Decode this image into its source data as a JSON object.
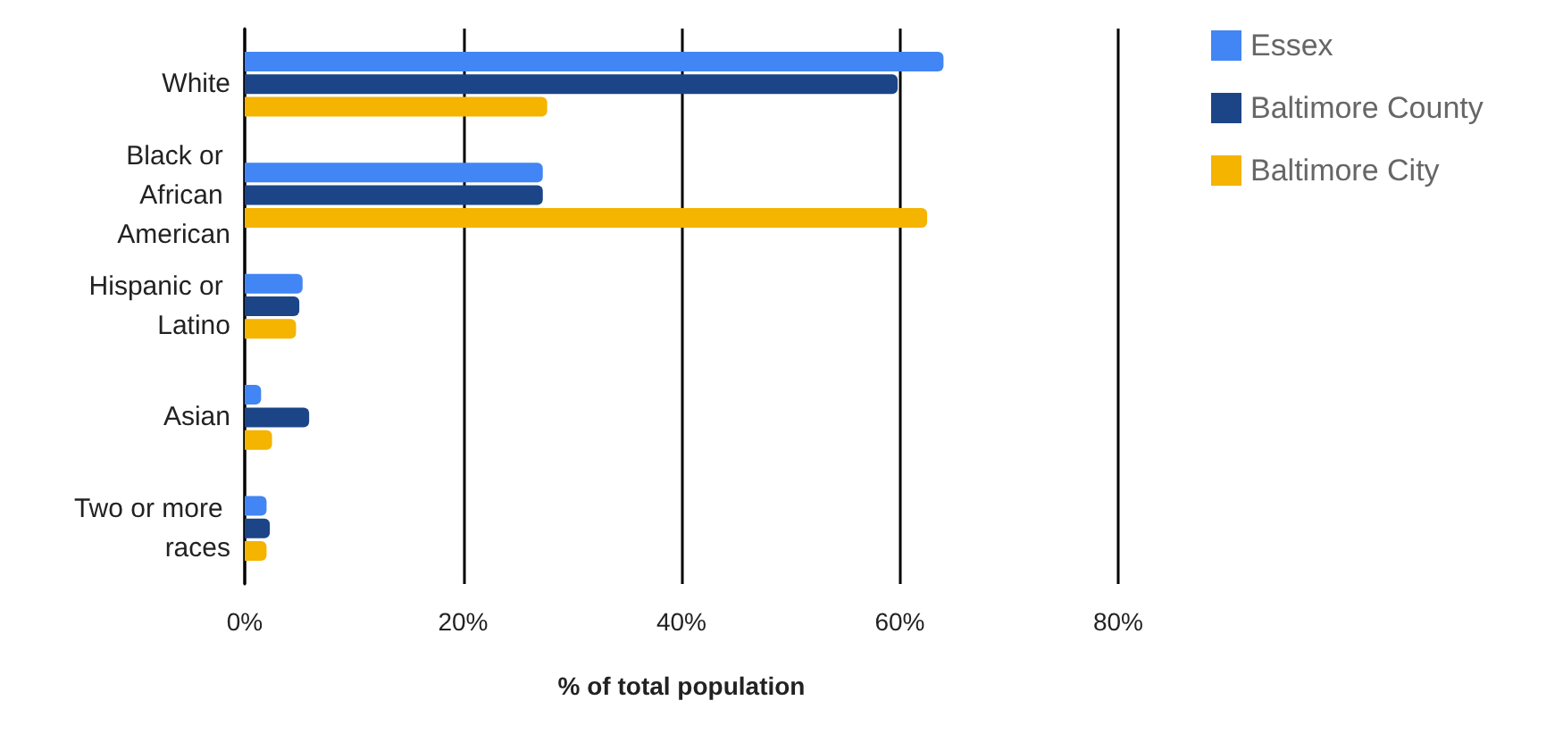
{
  "chart_data": {
    "type": "bar",
    "orientation": "horizontal",
    "xlabel": "% of total population",
    "categories": [
      "White",
      "Black or African American",
      "Hispanic or Latino",
      "Asian",
      "Two or more races"
    ],
    "series": [
      {
        "name": "Essex",
        "color": "#4285f4",
        "values": [
          64.0,
          27.3,
          5.3,
          1.5,
          2.0
        ]
      },
      {
        "name": "Baltimore County",
        "color": "#1c4587",
        "values": [
          59.8,
          27.3,
          5.0,
          5.9,
          2.3
        ]
      },
      {
        "name": "Baltimore City",
        "color": "#f4b400",
        "values": [
          27.7,
          62.5,
          4.7,
          2.5,
          2.0
        ]
      }
    ],
    "xlim": [
      0,
      80
    ],
    "xticks": [
      {
        "value": 0,
        "label": "0%"
      },
      {
        "value": 20,
        "label": "20%"
      },
      {
        "value": 40,
        "label": "40%"
      },
      {
        "value": 60,
        "label": "60%"
      },
      {
        "value": 80,
        "label": "80%"
      }
    ],
    "grid": "x",
    "legend": "top right"
  }
}
